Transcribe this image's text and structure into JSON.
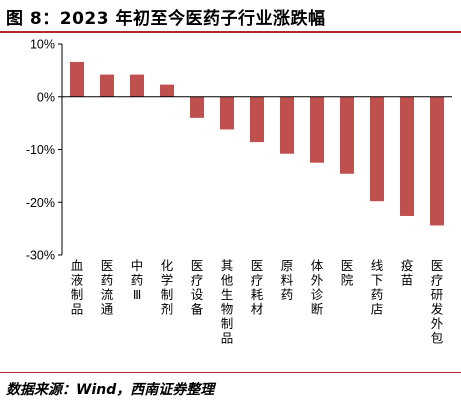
{
  "header": {
    "title": "图 8：2023 年初至今医药子行业涨跌幅"
  },
  "footer": {
    "source": "数据来源：Wind，西南证券整理"
  },
  "chart_data": {
    "type": "bar",
    "categories": [
      "血液制品",
      "医药流通",
      "中药Ⅲ",
      "化学制剂",
      "医疗设备",
      "其他生物制品",
      "医疗耗材",
      "原料药",
      "体外诊断",
      "医院",
      "线下药店",
      "疫苗",
      "医疗研发外包"
    ],
    "values": [
      6.6,
      4.2,
      4.2,
      2.3,
      -4.0,
      -6.2,
      -8.6,
      -10.8,
      -12.5,
      -14.6,
      -19.8,
      -22.6,
      -24.4
    ],
    "ylim": [
      -30,
      10
    ],
    "yticks": [
      -30,
      -20,
      -10,
      0,
      10
    ],
    "ytick_labels": [
      "-30%",
      "-20%",
      "-10%",
      "0%",
      "10%"
    ],
    "bar_color": "#c0504d",
    "grid": false,
    "xlabel": "",
    "ylabel": ""
  }
}
